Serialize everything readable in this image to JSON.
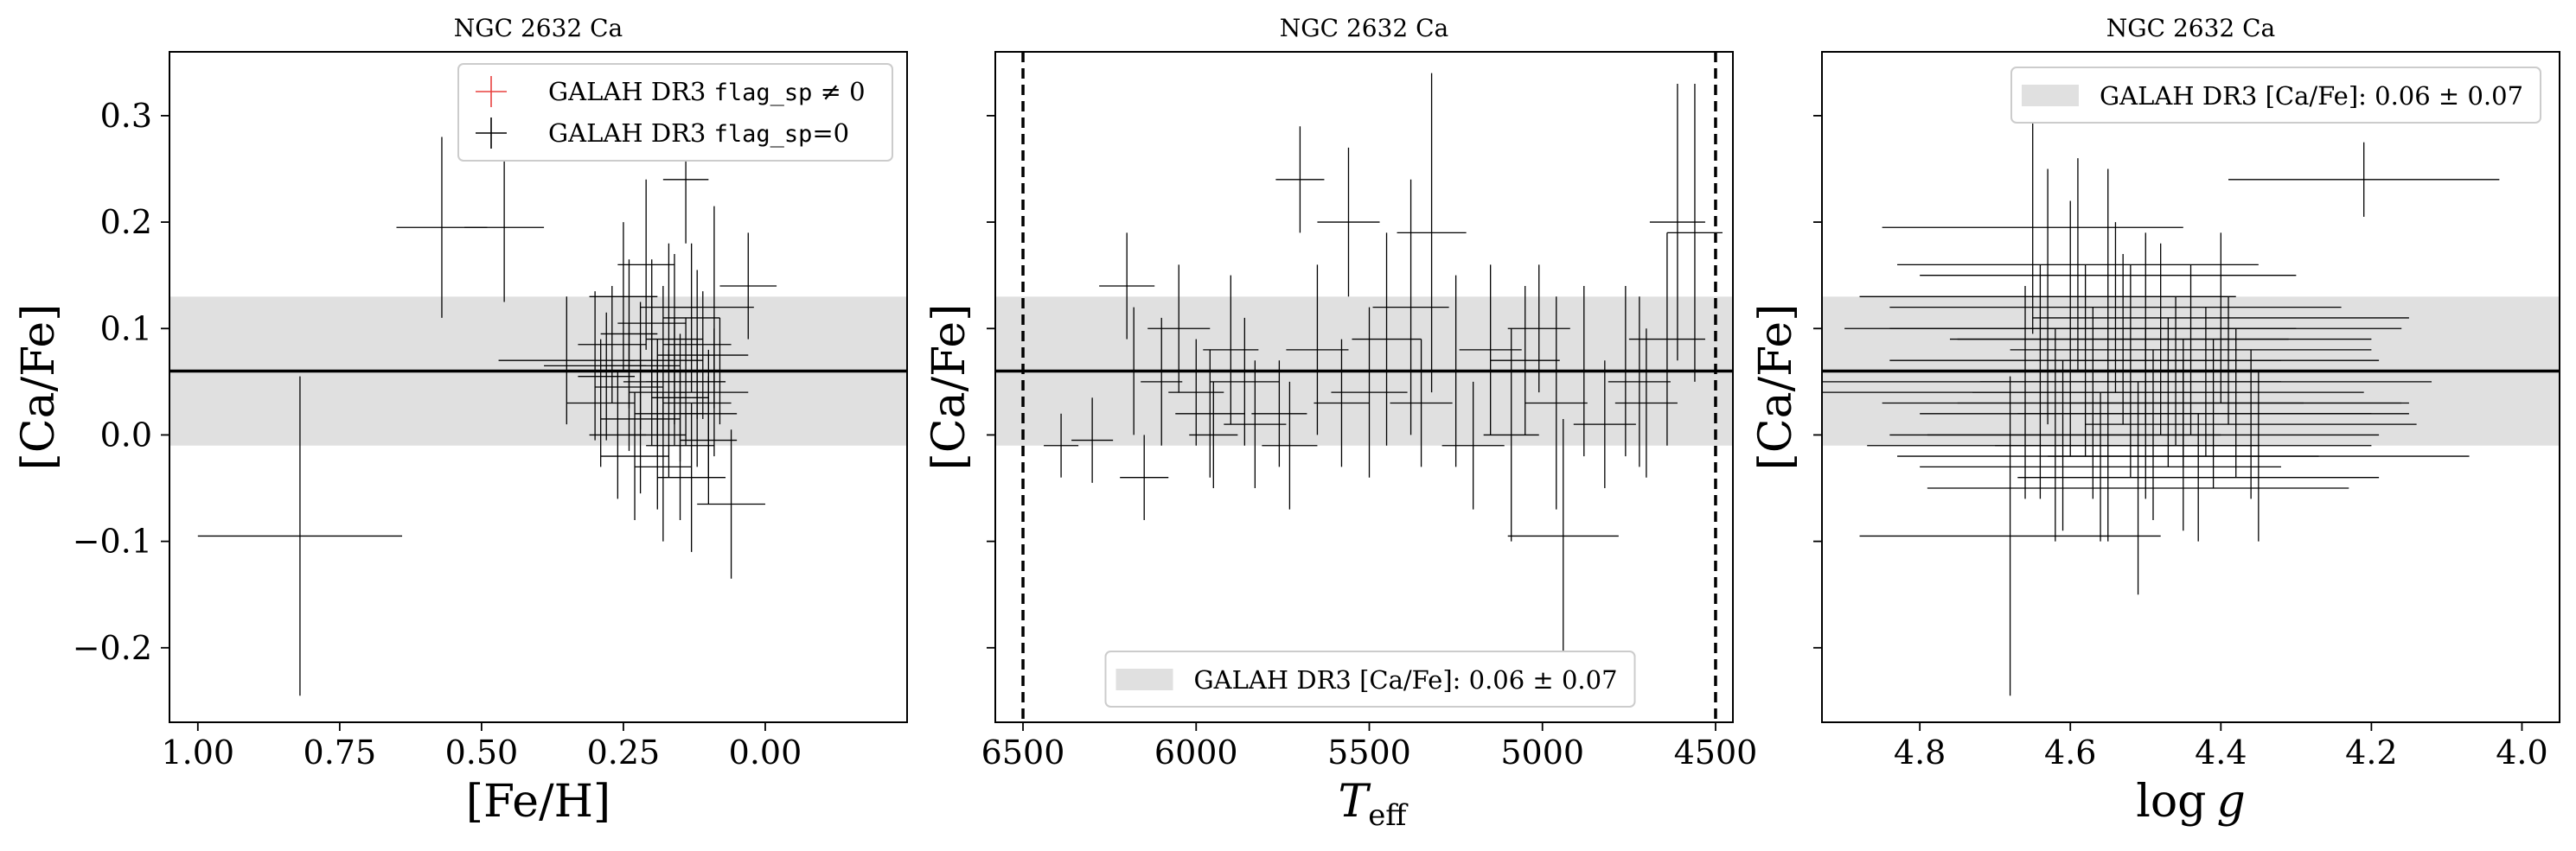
{
  "colors": {
    "errorbar": "#000000",
    "flagged": "#e8413f",
    "band": "#e0e0e0",
    "mean_line": "#000000"
  },
  "chart_data": [
    {
      "type": "scatter",
      "title": "NGC 2632 Ca",
      "xlabel": "[Fe/H]",
      "ylabel": "[Ca/Fe]",
      "xlim": [
        1.05,
        -0.25
      ],
      "ylim": [
        -0.27,
        0.36
      ],
      "x_inverted": true,
      "xticks": [
        1.0,
        0.75,
        0.5,
        0.25,
        0.0
      ],
      "xtick_labels": [
        "1.00",
        "0.75",
        "0.50",
        "0.25",
        "0.00"
      ],
      "yticks": [
        -0.2,
        -0.1,
        0.0,
        0.1,
        0.2,
        0.3
      ],
      "ytick_labels": [
        "−0.2",
        "−0.1",
        "0.0",
        "0.1",
        "0.2",
        "0.3"
      ],
      "show_ytick_labels": true,
      "band": {
        "mean": 0.06,
        "std": 0.07
      },
      "vlines": [],
      "legend": {
        "placement": "upper-right",
        "entries": [
          {
            "label_prefix": "GALAH DR3 ",
            "label_code": "flag_sp",
            "label_suffix": " ≠ 0",
            "marker": "cross",
            "color": "#e8413f"
          },
          {
            "label_prefix": "GALAH DR3 ",
            "label_code": "flag_sp",
            "label_suffix": "=0",
            "marker": "cross",
            "color": "#000000"
          }
        ]
      },
      "points": [
        [
          0.82,
          -0.095,
          0.18,
          0.15
        ],
        [
          0.57,
          0.195,
          0.08,
          0.085
        ],
        [
          0.46,
          0.195,
          0.07,
          0.07
        ],
        [
          0.09,
          0.12,
          0.07,
          0.095
        ],
        [
          0.03,
          0.14,
          0.05,
          0.05
        ],
        [
          0.35,
          0.07,
          0.12,
          0.06
        ],
        [
          0.3,
          0.065,
          0.09,
          0.07
        ],
        [
          0.27,
          0.085,
          0.06,
          0.055
        ],
        [
          0.24,
          0.045,
          0.06,
          0.06
        ],
        [
          0.22,
          0.015,
          0.07,
          0.07
        ],
        [
          0.2,
          0.105,
          0.06,
          0.06
        ],
        [
          0.19,
          0.04,
          0.05,
          0.05
        ],
        [
          0.18,
          0.07,
          0.07,
          0.07
        ],
        [
          0.17,
          0.02,
          0.06,
          0.06
        ],
        [
          0.16,
          0.09,
          0.05,
          0.08
        ],
        [
          0.15,
          -0.01,
          0.06,
          0.07
        ],
        [
          0.14,
          0.05,
          0.07,
          0.06
        ],
        [
          0.13,
          0.11,
          0.05,
          0.07
        ],
        [
          0.12,
          0.03,
          0.06,
          0.06
        ],
        [
          0.11,
          0.075,
          0.08,
          0.06
        ],
        [
          0.1,
          -0.005,
          0.05,
          0.06
        ],
        [
          0.09,
          0.04,
          0.06,
          0.06
        ],
        [
          0.08,
          0.06,
          0.05,
          0.05
        ],
        [
          0.06,
          -0.065,
          0.06,
          0.07
        ],
        [
          0.21,
          0.16,
          0.05,
          0.08
        ],
        [
          0.25,
          0.13,
          0.06,
          0.07
        ],
        [
          0.23,
          -0.02,
          0.06,
          0.06
        ],
        [
          0.18,
          -0.03,
          0.05,
          0.07
        ],
        [
          0.14,
          0.24,
          0.04,
          0.06
        ],
        [
          0.26,
          0.0,
          0.05,
          0.06
        ],
        [
          0.2,
          0.06,
          0.08,
          0.07
        ],
        [
          0.16,
          0.05,
          0.09,
          0.06
        ],
        [
          0.29,
          0.03,
          0.06,
          0.06
        ],
        [
          0.12,
          0.085,
          0.06,
          0.07
        ],
        [
          0.17,
          0.12,
          0.05,
          0.06
        ],
        [
          0.24,
          0.095,
          0.05,
          0.07
        ],
        [
          0.22,
          0.065,
          0.07,
          0.06
        ],
        [
          0.19,
          0.0,
          0.05,
          0.07
        ],
        [
          0.15,
          0.035,
          0.05,
          0.06
        ],
        [
          0.28,
          0.055,
          0.05,
          0.06
        ],
        [
          0.1,
          0.02,
          0.05,
          0.06
        ],
        [
          0.13,
          -0.04,
          0.06,
          0.07
        ]
      ]
    },
    {
      "type": "scatter",
      "title": "NGC 2632 Ca",
      "xlabel": "T_eff",
      "xlabel_main": "T",
      "xlabel_sub": "eff",
      "ylabel": "[Ca/Fe]",
      "xlim": [
        6580,
        4450
      ],
      "ylim": [
        -0.27,
        0.36
      ],
      "x_inverted": true,
      "xticks": [
        6500,
        6000,
        5500,
        5000,
        4500
      ],
      "xtick_labels": [
        "6500",
        "6000",
        "5500",
        "5000",
        "4500"
      ],
      "yticks": [
        -0.2,
        -0.1,
        0.0,
        0.1,
        0.2,
        0.3
      ],
      "ytick_labels": [],
      "show_ytick_labels": false,
      "band": {
        "mean": 0.06,
        "std": 0.07
      },
      "vlines": [
        6500,
        4500
      ],
      "legend": {
        "placement": "lower-center",
        "entries": [
          {
            "label_prefix": "GALAH DR3 [Ca/Fe]: ",
            "label_suffix": "0.06 ± 0.07",
            "marker": "band",
            "color": "#e0e0e0"
          }
        ]
      },
      "points": [
        [
          6390,
          -0.01,
          50,
          0.03
        ],
        [
          6300,
          -0.005,
          60,
          0.04
        ],
        [
          6200,
          0.14,
          80,
          0.05
        ],
        [
          6180,
          0.06,
          90,
          0.06
        ],
        [
          6150,
          -0.04,
          70,
          0.04
        ],
        [
          6050,
          0.1,
          90,
          0.06
        ],
        [
          6000,
          0.04,
          80,
          0.05
        ],
        [
          5960,
          0.02,
          100,
          0.06
        ],
        [
          5900,
          0.08,
          80,
          0.07
        ],
        [
          5830,
          0.01,
          90,
          0.06
        ],
        [
          5760,
          0.02,
          80,
          0.05
        ],
        [
          5700,
          0.24,
          70,
          0.05
        ],
        [
          5650,
          0.08,
          90,
          0.08
        ],
        [
          5560,
          0.2,
          90,
          0.07
        ],
        [
          5500,
          0.04,
          110,
          0.08
        ],
        [
          5450,
          0.09,
          100,
          0.1
        ],
        [
          5380,
          0.12,
          110,
          0.12
        ],
        [
          5320,
          0.19,
          100,
          0.15
        ],
        [
          5250,
          0.06,
          100,
          0.09
        ],
        [
          5200,
          -0.01,
          90,
          0.06
        ],
        [
          5150,
          0.08,
          90,
          0.08
        ],
        [
          5090,
          0.0,
          80,
          0.1
        ],
        [
          5010,
          0.1,
          90,
          0.06
        ],
        [
          4960,
          0.03,
          90,
          0.1
        ],
        [
          4940,
          -0.095,
          160,
          0.11
        ],
        [
          4880,
          0.06,
          80,
          0.08
        ],
        [
          4820,
          0.01,
          90,
          0.06
        ],
        [
          4760,
          0.06,
          100,
          0.08
        ],
        [
          4700,
          0.03,
          90,
          0.07
        ],
        [
          4640,
          0.09,
          110,
          0.1
        ],
        [
          4610,
          0.2,
          80,
          0.13
        ],
        [
          4560,
          0.19,
          80,
          0.14
        ],
        [
          5580,
          0.03,
          80,
          0.06
        ],
        [
          5860,
          0.05,
          100,
          0.06
        ],
        [
          6100,
          0.05,
          60,
          0.06
        ],
        [
          5730,
          -0.01,
          80,
          0.06
        ],
        [
          5350,
          0.03,
          90,
          0.06
        ],
        [
          5050,
          0.07,
          100,
          0.07
        ],
        [
          4720,
          0.05,
          90,
          0.08
        ],
        [
          5950,
          0.0,
          70,
          0.05
        ]
      ]
    },
    {
      "type": "scatter",
      "title": "NGC 2632 Ca",
      "xlabel": "log g",
      "xlabel_main": "log",
      "xlabel_italic": "g",
      "ylabel": "[Ca/Fe]",
      "xlim": [
        4.93,
        3.95
      ],
      "ylim": [
        -0.27,
        0.36
      ],
      "x_inverted": true,
      "xticks": [
        4.8,
        4.6,
        4.4,
        4.2,
        4.0
      ],
      "xtick_labels": [
        "4.8",
        "4.6",
        "4.4",
        "4.2",
        "4.0"
      ],
      "yticks": [
        -0.2,
        -0.1,
        0.0,
        0.1,
        0.2,
        0.3
      ],
      "ytick_labels": [],
      "show_ytick_labels": false,
      "band": {
        "mean": 0.06,
        "std": 0.07
      },
      "vlines": [],
      "legend": {
        "placement": "upper-right",
        "entries": [
          {
            "label_prefix": "GALAH DR3 [Ca/Fe]: ",
            "label_suffix": "0.06 ± 0.07",
            "marker": "band",
            "color": "#e0e0e0"
          }
        ]
      },
      "points": [
        [
          4.68,
          -0.095,
          0.2,
          0.15
        ],
        [
          4.21,
          0.24,
          0.18,
          0.035
        ],
        [
          4.65,
          0.195,
          0.2,
          0.1
        ],
        [
          4.6,
          0.1,
          0.3,
          0.12
        ],
        [
          4.55,
          0.15,
          0.25,
          0.1
        ],
        [
          4.52,
          0.06,
          0.35,
          0.1
        ],
        [
          4.5,
          0.02,
          0.3,
          0.08
        ],
        [
          4.48,
          0.09,
          0.28,
          0.09
        ],
        [
          4.45,
          -0.01,
          0.25,
          0.08
        ],
        [
          4.42,
          0.05,
          0.3,
          0.07
        ],
        [
          4.4,
          0.11,
          0.25,
          0.08
        ],
        [
          4.38,
          0.03,
          0.22,
          0.07
        ],
        [
          4.35,
          -0.02,
          0.28,
          0.08
        ],
        [
          4.62,
          0.0,
          0.22,
          0.1
        ],
        [
          4.58,
          0.07,
          0.26,
          0.09
        ],
        [
          4.56,
          -0.03,
          0.24,
          0.07
        ],
        [
          4.54,
          0.12,
          0.3,
          0.08
        ],
        [
          4.47,
          0.04,
          0.26,
          0.07
        ],
        [
          4.44,
          0.08,
          0.24,
          0.08
        ],
        [
          4.66,
          0.04,
          0.3,
          0.1
        ],
        [
          4.63,
          0.13,
          0.25,
          0.12
        ],
        [
          4.51,
          -0.05,
          0.28,
          0.1
        ],
        [
          4.49,
          0.0,
          0.3,
          0.08
        ],
        [
          4.46,
          0.06,
          0.22,
          0.07
        ],
        [
          4.43,
          -0.04,
          0.24,
          0.06
        ],
        [
          4.41,
          0.02,
          0.26,
          0.07
        ],
        [
          4.53,
          0.09,
          0.22,
          0.08
        ],
        [
          4.57,
          0.03,
          0.28,
          0.09
        ],
        [
          4.39,
          0.07,
          0.2,
          0.06
        ],
        [
          4.61,
          -0.01,
          0.26,
          0.08
        ],
        [
          4.59,
          0.16,
          0.24,
          0.1
        ],
        [
          4.36,
          0.01,
          0.22,
          0.07
        ],
        [
          4.64,
          0.05,
          0.32,
          0.11
        ],
        [
          4.5,
          0.1,
          0.34,
          0.09
        ],
        [
          4.45,
          0.03,
          0.3,
          0.06
        ],
        [
          4.55,
          -0.02,
          0.28,
          0.08
        ]
      ]
    }
  ]
}
